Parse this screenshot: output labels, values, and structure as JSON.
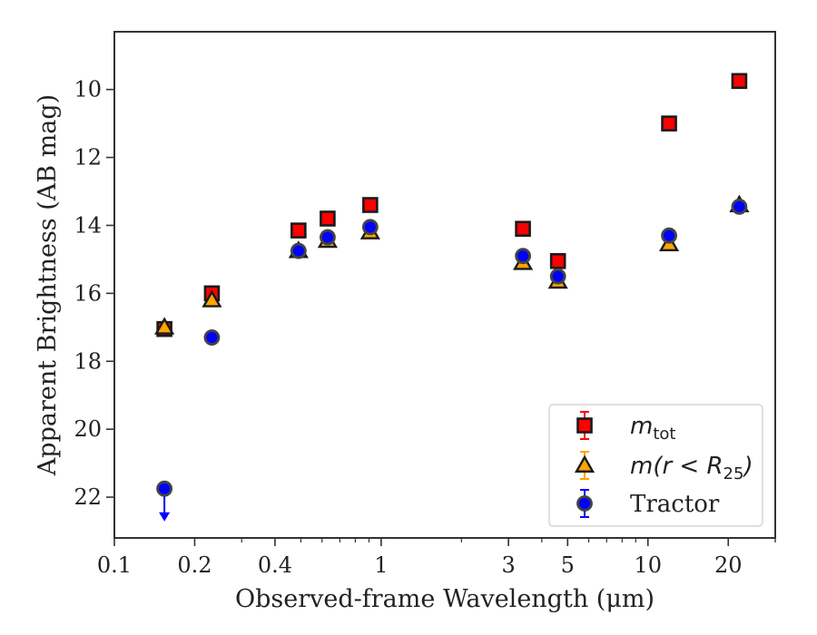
{
  "chart_data": {
    "type": "scatter",
    "title": "",
    "xlabel": "Observed-frame Wavelength (μm)",
    "ylabel": "Apparent Brightness (AB mag)",
    "xscale": "log",
    "xlim": [
      0.1,
      30
    ],
    "ylim": [
      23.2,
      8.3
    ],
    "y_inverted": true,
    "x_ticks": [
      0.1,
      0.2,
      0.4,
      1,
      3,
      5,
      10,
      20
    ],
    "x_tick_labels": [
      "0.1",
      "0.2",
      "0.4",
      "1",
      "3",
      "5",
      "10",
      "20"
    ],
    "y_ticks": [
      10,
      12,
      14,
      16,
      18,
      20,
      22
    ],
    "y_tick_labels": [
      "10",
      "12",
      "14",
      "16",
      "18",
      "20",
      "22"
    ],
    "grid": false,
    "legend_position": "lower-right",
    "series": [
      {
        "name": "m_tot",
        "legend_main": "m",
        "legend_sub": "tot",
        "marker": "square",
        "color": "#ff0000",
        "edge_color": "#1a1a1a",
        "x": [
          0.154,
          0.232,
          0.49,
          0.63,
          0.91,
          3.4,
          4.6,
          12.0,
          22.0
        ],
        "y": [
          17.05,
          16.0,
          14.15,
          13.8,
          13.4,
          14.1,
          15.05,
          11.0,
          9.75
        ]
      },
      {
        "name": "m(r < R25)",
        "legend_main": "m(r < R",
        "legend_sub": "25",
        "legend_end": ")",
        "marker": "triangle",
        "color": "#ffa500",
        "edge_color": "#1a1a1a",
        "x": [
          0.154,
          0.232,
          0.49,
          0.63,
          0.91,
          3.4,
          4.6,
          12.0,
          22.0
        ],
        "y": [
          17.0,
          16.2,
          14.75,
          14.45,
          14.2,
          15.1,
          15.65,
          14.55,
          13.4
        ]
      },
      {
        "name": "Tractor",
        "marker": "circle",
        "color": "#0000ff",
        "edge_color": "#444444",
        "x": [
          0.154,
          0.232,
          0.49,
          0.63,
          0.91,
          3.4,
          4.6,
          12.0,
          22.0
        ],
        "y": [
          21.75,
          17.3,
          14.75,
          14.35,
          14.05,
          14.9,
          15.5,
          14.3,
          13.45
        ],
        "upper_limit_index": 0
      }
    ]
  }
}
